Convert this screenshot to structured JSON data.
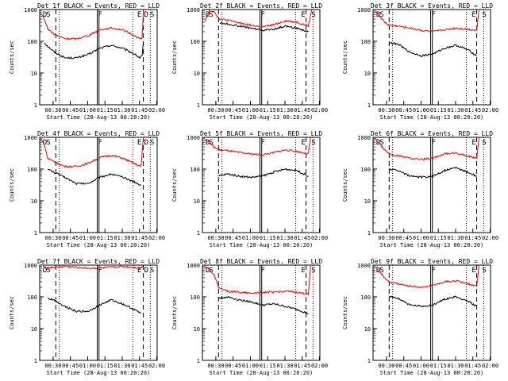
{
  "chart_data": [
    {
      "type": "line",
      "title": "Det 1f BLACK = Events, RED = LLD",
      "xlabel": "Start Time (28-Aug-13 00:20:20)",
      "ylabel": "Counts/sec",
      "yscale": "log",
      "ylim": [
        1,
        1000
      ],
      "x_ticks": [
        "00:30",
        "00:45",
        "01:00",
        "01:15",
        "01:30",
        "01:45",
        "02:00"
      ],
      "y_ticks": [
        "1",
        "10",
        "100",
        "1000"
      ],
      "markers": [
        "D",
        "S",
        "F",
        "E",
        "D",
        "S"
      ],
      "series": [
        {
          "name": "Events",
          "color": "#000000",
          "x_min": [
            2,
            5,
            11,
            20,
            30,
            40,
            50,
            60,
            70,
            80,
            85,
            87,
            88
          ],
          "values": [
            90,
            70,
            45,
            30,
            30,
            38,
            60,
            75,
            60,
            40,
            30,
            35,
            100
          ]
        },
        {
          "name": "LLD",
          "color": "#ff0000",
          "x_min": [
            -1,
            2,
            5,
            8,
            11,
            20,
            30,
            40,
            50,
            60,
            70,
            80,
            85,
            87,
            88
          ],
          "values": [
            700,
            500,
            250,
            200,
            160,
            120,
            120,
            150,
            230,
            260,
            230,
            150,
            120,
            130,
            1000
          ]
        }
      ]
    },
    {
      "type": "line",
      "title": "Det 2f BLACK = Events, RED = LLD",
      "xlabel": "Start Time (28-Aug-13 00:20:20)",
      "ylabel": "Counts/sec",
      "yscale": "log",
      "ylim": [
        1,
        1000
      ],
      "x_ticks": [
        "00:30",
        "00:45",
        "01:00",
        "01:15",
        "01:30",
        "01:45",
        "02:00"
      ],
      "y_ticks": [
        "1",
        "10",
        "100",
        "1000"
      ],
      "markers": [
        "D",
        "S",
        "F",
        "E",
        "S"
      ],
      "series": [
        {
          "name": "Events",
          "color": "#000000",
          "x_min": [
            13,
            20,
            30,
            40,
            50,
            60,
            70,
            80,
            90
          ],
          "values": [
            380,
            350,
            300,
            260,
            220,
            240,
            300,
            260,
            200
          ]
        },
        {
          "name": "LLD",
          "color": "#ff0000",
          "x_min": [
            0,
            4,
            8,
            11,
            13,
            20,
            30,
            40,
            50,
            60,
            70,
            80,
            90,
            93
          ],
          "values": [
            400,
            900,
            900,
            600,
            500,
            460,
            380,
            320,
            280,
            330,
            440,
            400,
            300,
            1000
          ]
        }
      ]
    },
    {
      "type": "line",
      "title": "Det 3f BLACK = Events, RED = LLD",
      "xlabel": "Start Time (28-Aug-13 00:20:20)",
      "ylabel": "Counts/sec",
      "yscale": "log",
      "ylim": [
        1,
        1000
      ],
      "x_ticks": [
        "00:30",
        "00:45",
        "01:00",
        "01:15",
        "01:30",
        "01:45",
        "02:00"
      ],
      "y_ticks": [
        "1",
        "10",
        "100",
        "1000"
      ],
      "markers": [
        "D",
        "S",
        "F",
        "E",
        "S"
      ],
      "series": [
        {
          "name": "Events",
          "color": "#000000",
          "x_min": [
            12,
            20,
            30,
            40,
            50,
            60,
            70,
            80,
            88
          ],
          "values": [
            90,
            80,
            45,
            35,
            40,
            60,
            75,
            55,
            35
          ]
        },
        {
          "name": "LLD",
          "color": "#ff0000",
          "x_min": [
            0,
            4,
            8,
            12,
            20,
            30,
            40,
            50,
            60,
            70,
            80,
            88,
            90
          ],
          "values": [
            900,
            600,
            400,
            320,
            300,
            260,
            220,
            200,
            230,
            260,
            240,
            220,
            1000
          ]
        }
      ]
    },
    {
      "type": "line",
      "title": "Det 4f BLACK = Events, RED = LLD",
      "xlabel": "Start Time (28-Aug-13 00:20:20)",
      "ylabel": "Counts/sec",
      "yscale": "log",
      "ylim": [
        1,
        1000
      ],
      "x_ticks": [
        "00:30",
        "00:45",
        "01:00",
        "01:15",
        "01:30",
        "01:45",
        "02:00"
      ],
      "y_ticks": [
        "1",
        "10",
        "100",
        "1000"
      ],
      "markers": [
        "D",
        "S",
        "F",
        "E",
        "D",
        "S"
      ],
      "series": [
        {
          "name": "Events",
          "color": "#000000",
          "x_min": [
            5,
            10,
            20,
            30,
            40,
            50,
            60,
            70,
            80,
            86
          ],
          "values": [
            100,
            80,
            55,
            35,
            35,
            55,
            70,
            55,
            40,
            30
          ]
        },
        {
          "name": "LLD",
          "color": "#ff0000",
          "x_min": [
            -1,
            2,
            5,
            10,
            20,
            30,
            40,
            50,
            60,
            70,
            80,
            86,
            88
          ],
          "values": [
            900,
            600,
            220,
            170,
            120,
            120,
            150,
            230,
            270,
            220,
            150,
            120,
            1000
          ]
        }
      ]
    },
    {
      "type": "line",
      "title": "Det 5f BLACK = Events, RED = LLD",
      "xlabel": "Start Time (28-Aug-13 00:20:20)",
      "ylabel": "Counts/sec",
      "yscale": "log",
      "ylim": [
        1,
        1000
      ],
      "x_ticks": [
        "00:30",
        "00:45",
        "01:00",
        "01:15",
        "01:30",
        "01:45",
        "02:00"
      ],
      "y_ticks": [
        "1",
        "10",
        "100",
        "1000"
      ],
      "markers": [
        "D",
        "S",
        "F",
        "E",
        "S"
      ],
      "series": [
        {
          "name": "Events",
          "color": "#000000",
          "x_min": [
            12,
            20,
            30,
            40,
            50,
            60,
            70,
            80,
            90
          ],
          "values": [
            60,
            70,
            60,
            55,
            60,
            80,
            100,
            90,
            60
          ]
        },
        {
          "name": "LLD",
          "color": "#ff0000",
          "x_min": [
            0,
            4,
            8,
            12,
            20,
            30,
            40,
            50,
            60,
            70,
            80,
            90,
            92
          ],
          "values": [
            800,
            700,
            500,
            400,
            380,
            330,
            300,
            280,
            330,
            400,
            360,
            300,
            1000
          ]
        }
      ]
    },
    {
      "type": "line",
      "title": "Det 6f BLACK = Events, RED = LLD",
      "xlabel": "Start Time (28-Aug-13 00:20:20)",
      "ylabel": "Counts/sec",
      "yscale": "log",
      "ylim": [
        1,
        1000
      ],
      "x_ticks": [
        "00:30",
        "00:45",
        "01:00",
        "01:15",
        "01:30",
        "01:45",
        "02:00"
      ],
      "y_ticks": [
        "1",
        "10",
        "100",
        "1000"
      ],
      "markers": [
        "D",
        "S",
        "F",
        "E",
        "S"
      ],
      "series": [
        {
          "name": "Events",
          "color": "#000000",
          "x_min": [
            12,
            20,
            30,
            40,
            50,
            60,
            70,
            80,
            88
          ],
          "values": [
            100,
            90,
            60,
            55,
            60,
            90,
            110,
            80,
            60
          ]
        },
        {
          "name": "LLD",
          "color": "#ff0000",
          "x_min": [
            0,
            4,
            8,
            12,
            20,
            30,
            40,
            50,
            60,
            70,
            80,
            88,
            90
          ],
          "values": [
            900,
            600,
            400,
            300,
            260,
            220,
            200,
            220,
            300,
            320,
            260,
            220,
            1000
          ]
        }
      ]
    },
    {
      "type": "line",
      "title": "Det 7f BLACK = Events, RED = LLD",
      "xlabel": "Start Time (28-Aug-13 00:20:20)",
      "ylabel": "Counts/sec",
      "yscale": "log",
      "ylim": [
        1,
        1000
      ],
      "x_ticks": [
        "00:30",
        "00:45",
        "01:00",
        "01:15",
        "01:30",
        "01:45",
        "02:00"
      ],
      "y_ticks": [
        "1",
        "10",
        "100",
        "1000"
      ],
      "markers": [
        "D",
        "S",
        "F",
        "E",
        "D",
        "S"
      ],
      "series": [
        {
          "name": "Events",
          "color": "#000000",
          "x_min": [
            5,
            10,
            20,
            30,
            40,
            50,
            60,
            70,
            80,
            86
          ],
          "values": [
            90,
            80,
            50,
            35,
            35,
            55,
            80,
            60,
            40,
            30
          ]
        },
        {
          "name": "LLD",
          "color": "#ff0000",
          "x_min": [
            -1,
            2,
            5,
            10,
            20,
            30,
            40,
            50,
            60,
            70,
            80,
            86,
            88
          ],
          "values": [
            1000,
            900,
            800,
            850,
            900,
            850,
            800,
            800,
            850,
            900,
            850,
            800,
            1000
          ]
        }
      ]
    },
    {
      "type": "line",
      "title": "Det 8f BLACK = Events, RED = LLD",
      "xlabel": "Start Time (28-Aug-13 00:20:20)",
      "ylabel": "Counts/sec",
      "yscale": "log",
      "ylim": [
        1,
        1000
      ],
      "x_ticks": [
        "00:30",
        "00:45",
        "01:00",
        "01:15",
        "01:30",
        "01:45",
        "02:00"
      ],
      "y_ticks": [
        "1",
        "10",
        "100",
        "1000"
      ],
      "markers": [
        "D",
        "S",
        "F",
        "E",
        "S"
      ],
      "series": [
        {
          "name": "Events",
          "color": "#000000",
          "x_min": [
            12,
            20,
            30,
            40,
            50,
            60,
            70,
            80,
            90
          ],
          "values": [
            90,
            100,
            80,
            70,
            55,
            60,
            50,
            40,
            30
          ]
        },
        {
          "name": "LLD",
          "color": "#ff0000",
          "x_min": [
            0,
            4,
            8,
            12,
            20,
            30,
            40,
            50,
            60,
            70,
            80,
            90,
            92
          ],
          "values": [
            900,
            700,
            500,
            200,
            150,
            140,
            130,
            140,
            140,
            150,
            140,
            120,
            1000
          ]
        }
      ]
    },
    {
      "type": "line",
      "title": "Det 9f BLACK = Events, RED = LLD",
      "xlabel": "Start Time (28-Aug-13 00:20:20)",
      "ylabel": "Counts/sec",
      "yscale": "log",
      "ylim": [
        1,
        1000
      ],
      "x_ticks": [
        "00:30",
        "00:45",
        "01:00",
        "01:15",
        "01:30",
        "01:45",
        "02:00"
      ],
      "y_ticks": [
        "1",
        "10",
        "100",
        "1000"
      ],
      "markers": [
        "D",
        "S",
        "F",
        "E",
        "S"
      ],
      "series": [
        {
          "name": "Events",
          "color": "#000000",
          "x_min": [
            12,
            20,
            30,
            40,
            50,
            60,
            70,
            80,
            88
          ],
          "values": [
            100,
            90,
            55,
            50,
            55,
            85,
            100,
            75,
            50
          ]
        },
        {
          "name": "LLD",
          "color": "#ff0000",
          "x_min": [
            0,
            4,
            8,
            12,
            20,
            30,
            40,
            50,
            60,
            70,
            80,
            88,
            90
          ],
          "values": [
            900,
            600,
            400,
            300,
            250,
            220,
            200,
            230,
            300,
            320,
            260,
            220,
            1000
          ]
        }
      ]
    }
  ]
}
